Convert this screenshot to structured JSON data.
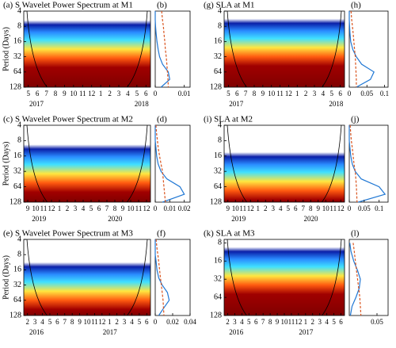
{
  "chart_data": [
    {
      "type": "wavelet",
      "title": "(a) S Wavelet Power Spectrum at M1",
      "ylabel": "Period (Days)",
      "ylim": [
        4,
        128
      ],
      "yticks": [
        4,
        8,
        16,
        32,
        64,
        128
      ],
      "log_scale": true,
      "categories": [
        "5",
        "6",
        "7",
        "8",
        "9",
        "10",
        "11",
        "12",
        "1",
        "2",
        "3",
        "4",
        "5",
        "6"
      ],
      "years": [
        "2017",
        "2018"
      ]
    },
    {
      "type": "profile",
      "title": "(b)",
      "xlim": [
        0,
        0.012
      ],
      "xticks": [
        0,
        0.01
      ],
      "ylim": [
        4,
        128
      ],
      "log_scale": true,
      "y": [
        4,
        6,
        8,
        11,
        16,
        23,
        32,
        45,
        64,
        90,
        128
      ],
      "series": [
        {
          "color": "#1f77d4",
          "values": [
            0,
            0,
            0.0001,
            0.0003,
            0.0006,
            0.001,
            0.0015,
            0.0025,
            0.0045,
            0.005,
            0.002
          ]
        },
        {
          "color": "#d9541e",
          "dashed": true,
          "values": [
            0.0022,
            0.0025,
            0.0028,
            0.003,
            0.0033,
            0.0035,
            0.0038,
            0.004,
            0.0042,
            0.0044,
            0.0045
          ]
        }
      ]
    },
    {
      "type": "wavelet",
      "title": "(g) SLA at M1",
      "ylim": [
        4,
        128
      ],
      "yticks": [
        4,
        8,
        16,
        32,
        64,
        128
      ],
      "log_scale": true,
      "categories": [
        "5",
        "6",
        "7",
        "8",
        "9",
        "10",
        "11",
        "12",
        "1",
        "2",
        "3",
        "4",
        "5",
        "6"
      ],
      "years": [
        "2017",
        "2018"
      ]
    },
    {
      "type": "profile",
      "title": "(h)",
      "xlim": [
        0,
        0.11
      ],
      "xticks": [
        0,
        0.05,
        0.1
      ],
      "ylim": [
        4,
        128
      ],
      "log_scale": true,
      "y": [
        4,
        6,
        8,
        11,
        16,
        23,
        32,
        45,
        64,
        90,
        128
      ],
      "series": [
        {
          "color": "#1f77d4",
          "values": [
            0,
            0,
            0.001,
            0.002,
            0.004,
            0.01,
            0.02,
            0.035,
            0.07,
            0.06,
            0.02
          ]
        },
        {
          "color": "#d9541e",
          "dashed": true,
          "values": [
            0.005,
            0.007,
            0.009,
            0.011,
            0.013,
            0.015,
            0.017,
            0.018,
            0.019,
            0.02,
            0.02
          ]
        }
      ]
    },
    {
      "type": "wavelet",
      "title": "(c) S Wavelet Power Spectrum at M2",
      "ylabel": "Period (Days)",
      "ylim": [
        4,
        128
      ],
      "yticks": [
        4,
        8,
        16,
        32,
        64,
        128
      ],
      "log_scale": true,
      "categories": [
        "9",
        "10",
        "11",
        "12",
        "1",
        "2",
        "3",
        "4",
        "5",
        "6",
        "7",
        "8",
        "9",
        "10",
        "11",
        "12"
      ],
      "years": [
        "2019",
        "2020"
      ]
    },
    {
      "type": "profile",
      "title": "(d)",
      "xlim": [
        0,
        0.024
      ],
      "xticks": [
        0,
        0.01,
        0.02
      ],
      "ylim": [
        4,
        128
      ],
      "log_scale": true,
      "y": [
        4,
        6,
        8,
        11,
        16,
        23,
        32,
        45,
        64,
        90,
        128
      ],
      "series": [
        {
          "color": "#1f77d4",
          "values": [
            0,
            0,
            0,
            0.0005,
            0.001,
            0.002,
            0.004,
            0.008,
            0.017,
            0.02,
            0.005
          ]
        },
        {
          "color": "#d9541e",
          "dashed": true,
          "values": [
            0.0005,
            0.001,
            0.0015,
            0.002,
            0.003,
            0.004,
            0.005,
            0.0055,
            0.006,
            0.0065,
            0.007
          ]
        }
      ]
    },
    {
      "type": "wavelet",
      "title": "(i) SLA at M2",
      "ylim": [
        4,
        128
      ],
      "yticks": [
        4,
        8,
        16,
        32,
        64,
        128
      ],
      "log_scale": true,
      "categories": [
        "9",
        "10",
        "11",
        "12",
        "1",
        "2",
        "3",
        "4",
        "5",
        "6",
        "7",
        "8",
        "9",
        "10",
        "11",
        "12"
      ],
      "years": [
        "2019",
        "2020"
      ]
    },
    {
      "type": "profile",
      "title": "(j)",
      "xlim": [
        0,
        0.13
      ],
      "xticks": [
        0,
        0.05,
        0.1
      ],
      "ylim": [
        4,
        128
      ],
      "log_scale": true,
      "y": [
        4,
        6,
        8,
        11,
        16,
        23,
        32,
        45,
        64,
        90,
        128
      ],
      "series": [
        {
          "color": "#1f77d4",
          "values": [
            0,
            0,
            0,
            0.002,
            0.005,
            0.01,
            0.02,
            0.04,
            0.1,
            0.12,
            0.03
          ]
        },
        {
          "color": "#d9541e",
          "dashed": true,
          "values": [
            0.003,
            0.005,
            0.007,
            0.01,
            0.013,
            0.016,
            0.02,
            0.022,
            0.024,
            0.025,
            0.026
          ]
        }
      ]
    },
    {
      "type": "wavelet",
      "title": "(e) S Wavelet Power Spectrum at M3",
      "ylabel": "Period (Days)",
      "ylim": [
        4,
        128
      ],
      "yticks": [
        4,
        8,
        16,
        32,
        64,
        128
      ],
      "log_scale": true,
      "categories": [
        "2",
        "3",
        "4",
        "5",
        "6",
        "7",
        "8",
        "9",
        "10",
        "11",
        "12",
        "1",
        "2",
        "3",
        "4",
        "5",
        "6"
      ],
      "years": [
        "2016",
        "2017"
      ]
    },
    {
      "type": "profile",
      "title": "(f)",
      "xlim": [
        0,
        0.04
      ],
      "xticks": [
        0,
        0.02,
        0.04
      ],
      "ylim": [
        4,
        128
      ],
      "log_scale": true,
      "y": [
        4,
        6,
        8,
        11,
        16,
        23,
        32,
        45,
        64,
        90,
        128
      ],
      "series": [
        {
          "color": "#1f77d4",
          "values": [
            0,
            0,
            0,
            0.001,
            0.002,
            0.004,
            0.008,
            0.014,
            0.016,
            0.01,
            0.004
          ]
        },
        {
          "color": "#d9541e",
          "dashed": true,
          "values": [
            0.001,
            0.002,
            0.003,
            0.004,
            0.005,
            0.006,
            0.007,
            0.008,
            0.009,
            0.0095,
            0.01
          ]
        }
      ]
    },
    {
      "type": "wavelet",
      "title": "(k) SLA at M3",
      "ylim": [
        7,
        128
      ],
      "yticks": [
        8,
        16,
        32,
        64,
        128
      ],
      "log_scale": true,
      "categories": [
        "2",
        "3",
        "4",
        "5",
        "6",
        "7",
        "8",
        "9",
        "10",
        "11",
        "12",
        "1",
        "2",
        "3",
        "4",
        "5",
        "6"
      ],
      "years": [
        "2016",
        "2017"
      ]
    },
    {
      "type": "profile",
      "title": "(l)",
      "xlim": [
        0,
        0.07
      ],
      "xticks": [
        0.05
      ],
      "ylim": [
        7,
        128
      ],
      "log_scale": true,
      "y": [
        8,
        11,
        16,
        23,
        32,
        45,
        64,
        90,
        128
      ],
      "series": [
        {
          "color": "#1f77d4",
          "values": [
            0.001,
            0.003,
            0.008,
            0.015,
            0.02,
            0.018,
            0.012,
            0.005,
            0.002
          ]
        },
        {
          "color": "#d9541e",
          "dashed": true,
          "values": [
            0.007,
            0.009,
            0.011,
            0.013,
            0.015,
            0.017,
            0.019,
            0.02,
            0.021
          ]
        }
      ]
    }
  ]
}
